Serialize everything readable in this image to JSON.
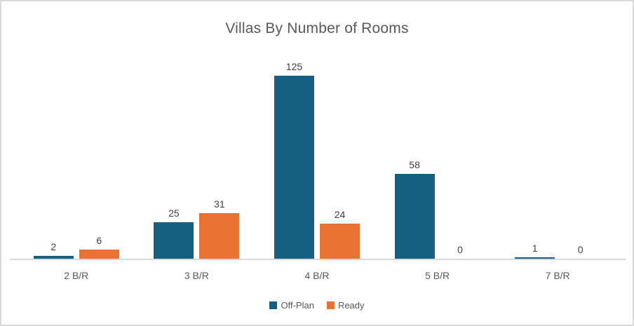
{
  "chart_data": {
    "type": "bar",
    "title": "Villas By Number of Rooms",
    "categories": [
      "2 B/R",
      "3 B/R",
      "4 B/R",
      "5 B/R",
      "7 B/R"
    ],
    "series": [
      {
        "name": "Off-Plan",
        "color": "#156082",
        "values": [
          2,
          25,
          125,
          58,
          1
        ]
      },
      {
        "name": "Ready",
        "color": "#E97132",
        "values": [
          6,
          31,
          24,
          0,
          0
        ]
      }
    ],
    "data_labels": true,
    "ylim": [
      0,
      140
    ],
    "grid": false,
    "legend_position": "bottom",
    "colors": {
      "frame_border": "#D9D9D9",
      "axis_line": "#D9D9D9",
      "title_text": "#595959",
      "data_label_text": "#404040",
      "category_text": "#595959",
      "legend_text": "#595959"
    }
  }
}
